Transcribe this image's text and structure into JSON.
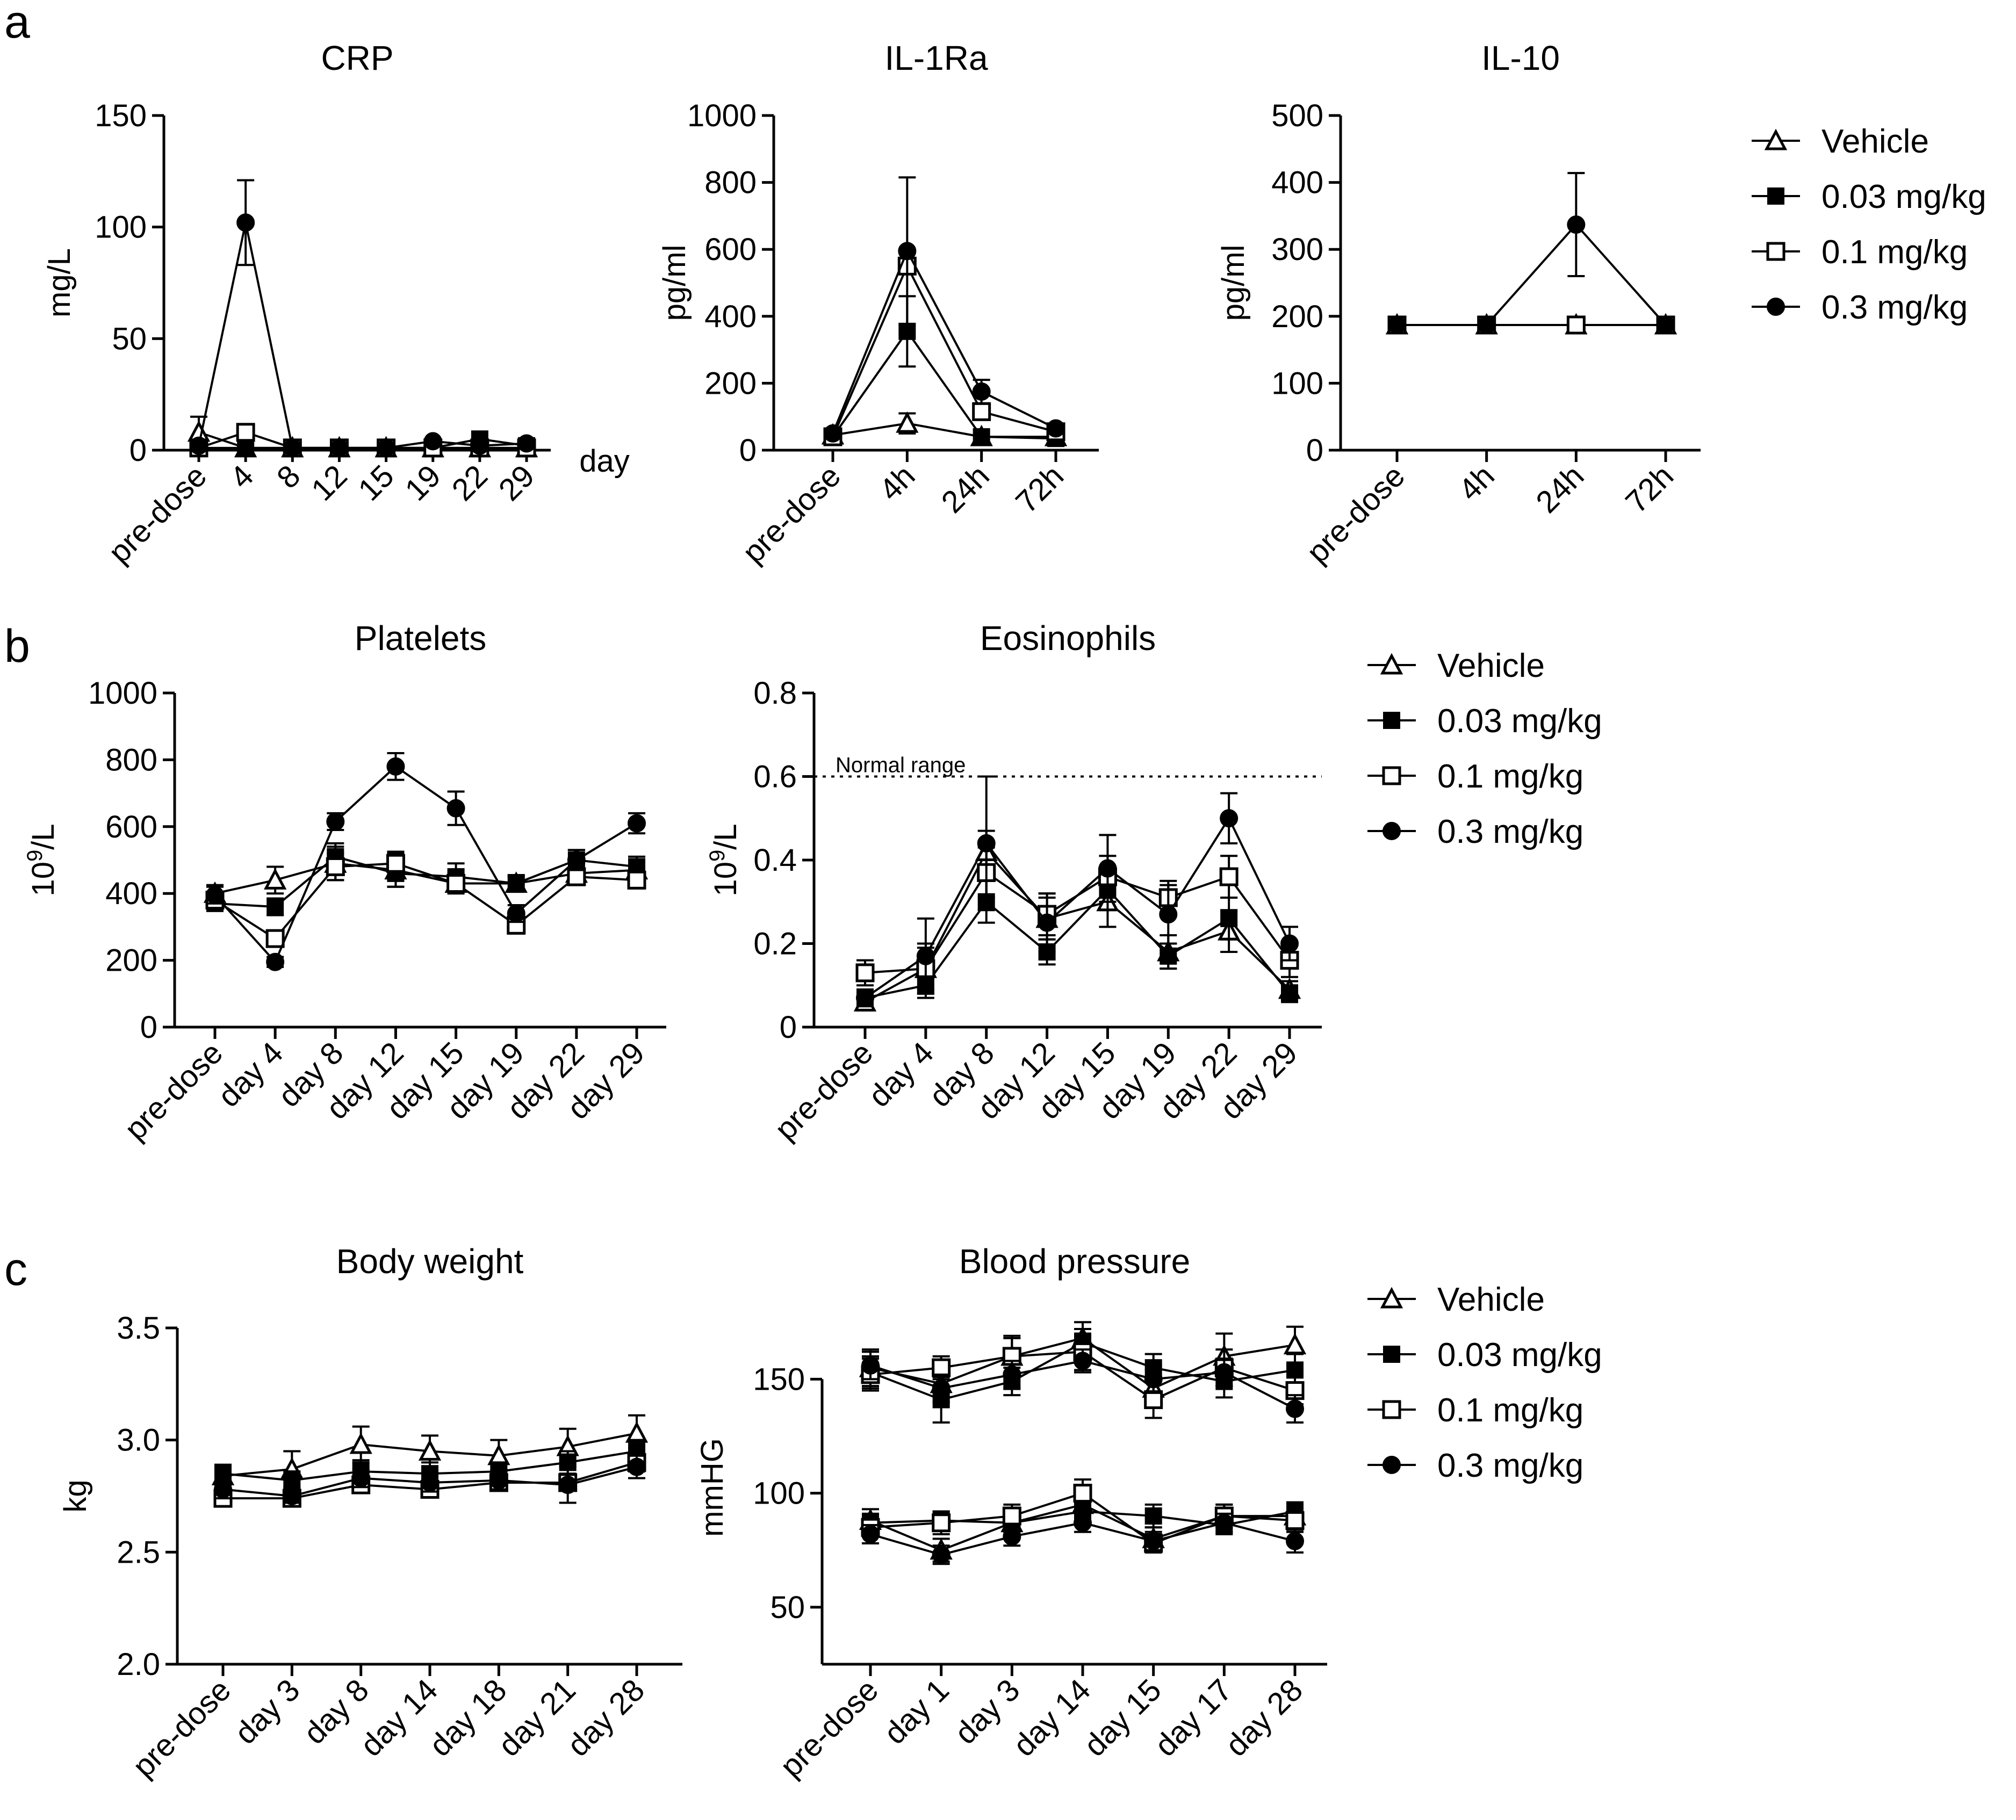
{
  "panel_labels": [
    "a",
    "b",
    "c"
  ],
  "legend": {
    "labels": [
      "Vehicle",
      "0.03 mg/kg",
      "0.1 mg/kg",
      "0.3 mg/kg"
    ],
    "markers": [
      "open-triangle",
      "filled-square",
      "open-square",
      "filled-circle"
    ]
  },
  "colors": {
    "ink": "#000000",
    "background": "#ffffff"
  },
  "chart_data": [
    {
      "id": "crp",
      "type": "line",
      "title": "CRP",
      "ylabel": "mg/L",
      "xlabel": "day",
      "categories": [
        "pre-dose",
        "4",
        "8",
        "12",
        "15",
        "19",
        "22",
        "29"
      ],
      "ylim": [
        0,
        150
      ],
      "yticks": [
        0,
        50,
        100,
        150
      ],
      "series": [
        {
          "name": "Vehicle",
          "values": [
            8,
            1,
            1,
            1,
            1,
            1,
            1,
            1
          ],
          "err": [
            7,
            0,
            0,
            0,
            0,
            0,
            0,
            0
          ]
        },
        {
          "name": "0.03 mg/kg",
          "values": [
            1,
            1,
            1,
            1,
            1,
            1,
            5,
            2
          ],
          "err": [
            0,
            0,
            0,
            0,
            0,
            0,
            0,
            0
          ]
        },
        {
          "name": "0.1 mg/kg",
          "values": [
            1,
            8,
            1,
            1,
            1,
            1,
            1,
            1
          ],
          "err": [
            0,
            0,
            0,
            0,
            0,
            0,
            0,
            0
          ]
        },
        {
          "name": "0.3 mg/kg",
          "values": [
            2,
            102,
            1,
            1,
            1,
            4,
            2,
            3
          ],
          "err": [
            0,
            19,
            0,
            0,
            0,
            0,
            0,
            0
          ]
        }
      ]
    },
    {
      "id": "il1ra",
      "type": "line",
      "title": "IL-1Ra",
      "ylabel": "pg/ml",
      "xlabel": "",
      "categories": [
        "pre-dose",
        "4h",
        "24h",
        "72h"
      ],
      "ylim": [
        0,
        1000
      ],
      "yticks": [
        0,
        200,
        400,
        600,
        800,
        1000
      ],
      "series": [
        {
          "name": "Vehicle",
          "values": [
            45,
            80,
            40,
            40
          ],
          "err": [
            0,
            30,
            0,
            0
          ]
        },
        {
          "name": "0.03 mg/kg",
          "values": [
            40,
            355,
            40,
            35
          ],
          "err": [
            0,
            105,
            0,
            0
          ]
        },
        {
          "name": "0.1 mg/kg",
          "values": [
            40,
            550,
            115,
            55
          ],
          "err": [
            0,
            0,
            20,
            0
          ]
        },
        {
          "name": "0.3 mg/kg",
          "values": [
            50,
            595,
            175,
            65
          ],
          "err": [
            0,
            220,
            35,
            0
          ]
        }
      ]
    },
    {
      "id": "il10",
      "type": "line",
      "title": "IL-10",
      "ylabel": "pg/ml",
      "xlabel": "",
      "categories": [
        "pre-dose",
        "4h",
        "24h",
        "72h"
      ],
      "ylim": [
        0,
        500
      ],
      "yticks": [
        0,
        100,
        200,
        300,
        400,
        500
      ],
      "series": [
        {
          "name": "Vehicle",
          "values": [
            187,
            187,
            187,
            187
          ],
          "err": [
            0,
            0,
            0,
            0
          ]
        },
        {
          "name": "0.03 mg/kg",
          "values": [
            187,
            187,
            187,
            187
          ],
          "err": [
            0,
            0,
            0,
            0
          ]
        },
        {
          "name": "0.1 mg/kg",
          "values": [
            187,
            187,
            187,
            187
          ],
          "err": [
            0,
            0,
            0,
            0
          ]
        },
        {
          "name": "0.3 mg/kg",
          "values": [
            187,
            187,
            337,
            187
          ],
          "err": [
            0,
            0,
            77,
            0
          ]
        }
      ]
    },
    {
      "id": "platelets",
      "type": "line",
      "title": "Platelets",
      "ylabel": "10^9/L",
      "xlabel": "",
      "categories": [
        "pre-dose",
        "day 4",
        "day 8",
        "day 12",
        "day 15",
        "day 19",
        "day 22",
        "day 29"
      ],
      "ylim": [
        0,
        1000
      ],
      "yticks": [
        0,
        200,
        400,
        600,
        800,
        1000
      ],
      "series": [
        {
          "name": "Vehicle",
          "values": [
            400,
            440,
            490,
            470,
            430,
            430,
            460,
            470
          ],
          "err": [
            25,
            40,
            50,
            50,
            30,
            20,
            30,
            30
          ]
        },
        {
          "name": "0.03 mg/kg",
          "values": [
            370,
            360,
            510,
            460,
            450,
            430,
            500,
            480
          ],
          "err": [
            20,
            25,
            40,
            40,
            40,
            25,
            30,
            30
          ]
        },
        {
          "name": "0.1 mg/kg",
          "values": [
            380,
            265,
            480,
            490,
            430,
            305,
            450,
            440
          ],
          "err": [
            20,
            20,
            40,
            35,
            25,
            25,
            25,
            25
          ]
        },
        {
          "name": "0.3 mg/kg",
          "values": [
            395,
            195,
            615,
            780,
            655,
            340,
            500,
            610
          ],
          "err": [
            25,
            15,
            25,
            40,
            50,
            25,
            30,
            30
          ]
        }
      ]
    },
    {
      "id": "eosinophils",
      "type": "line",
      "title": "Eosinophils",
      "ylabel": "10^9/L",
      "xlabel": "",
      "categories": [
        "pre-dose",
        "day 4",
        "day 8",
        "day 12",
        "day 15",
        "day 19",
        "day 22",
        "day 29"
      ],
      "ylim": [
        0,
        0.8
      ],
      "yticks": [
        0,
        0.2,
        0.4,
        0.6,
        0.8
      ],
      "reference_line": {
        "y": 0.6,
        "label": "Normal range"
      },
      "series": [
        {
          "name": "Vehicle",
          "values": [
            0.06,
            0.14,
            0.42,
            0.26,
            0.3,
            0.18,
            0.23,
            0.09
          ],
          "err": [
            0.02,
            0.06,
            0.05,
            0.05,
            0.06,
            0.04,
            0.05,
            0.02
          ]
        },
        {
          "name": "0.03 mg/kg",
          "values": [
            0.07,
            0.1,
            0.3,
            0.18,
            0.33,
            0.17,
            0.26,
            0.08
          ],
          "err": [
            0.02,
            0.03,
            0.05,
            0.03,
            0.05,
            0.03,
            0.05,
            0.02
          ]
        },
        {
          "name": "0.1 mg/kg",
          "values": [
            0.13,
            0.14,
            0.37,
            0.27,
            0.36,
            0.31,
            0.36,
            0.16
          ],
          "err": [
            0.03,
            0.05,
            0.06,
            0.05,
            0.05,
            0.04,
            0.05,
            0.04
          ]
        },
        {
          "name": "0.3 mg/kg",
          "values": [
            0.07,
            0.17,
            0.44,
            0.25,
            0.38,
            0.27,
            0.5,
            0.2
          ],
          "err": [
            0.02,
            0.09,
            0.16,
            0.07,
            0.08,
            0.07,
            0.06,
            0.04
          ]
        }
      ]
    },
    {
      "id": "bodyweight",
      "type": "line",
      "title": "Body weight",
      "ylabel": "kg",
      "xlabel": "",
      "categories": [
        "pre-dose",
        "day 3",
        "day 8",
        "day 14",
        "day 18",
        "day 21",
        "day 28"
      ],
      "ylim": [
        2.0,
        3.5
      ],
      "yticks": [
        2.0,
        2.5,
        3.0,
        3.5
      ],
      "series": [
        {
          "name": "Vehicle",
          "values": [
            2.84,
            2.87,
            2.98,
            2.95,
            2.93,
            2.97,
            3.03
          ],
          "err": [
            0.04,
            0.08,
            0.08,
            0.07,
            0.07,
            0.08,
            0.08
          ]
        },
        {
          "name": "0.03 mg/kg",
          "values": [
            2.85,
            2.82,
            2.86,
            2.85,
            2.86,
            2.9,
            2.95
          ],
          "err": [
            0.04,
            0.04,
            0.05,
            0.05,
            0.04,
            0.05,
            0.05
          ]
        },
        {
          "name": "0.1 mg/kg",
          "values": [
            2.74,
            2.74,
            2.8,
            2.78,
            2.81,
            2.81,
            2.9
          ],
          "err": [
            0.03,
            0.03,
            0.03,
            0.03,
            0.03,
            0.03,
            0.04
          ]
        },
        {
          "name": "0.3 mg/kg",
          "values": [
            2.78,
            2.75,
            2.83,
            2.81,
            2.82,
            2.8,
            2.88
          ],
          "err": [
            0.04,
            0.03,
            0.04,
            0.04,
            0.04,
            0.08,
            0.05
          ]
        }
      ]
    },
    {
      "id": "bloodpressure",
      "type": "line",
      "title": "Blood pressure",
      "ylabel": "mmHG",
      "xlabel": "",
      "categories": [
        "pre-dose",
        "day 1",
        "day 3",
        "day 14",
        "day 15",
        "day 17",
        "day 28"
      ],
      "ylim": [
        25,
        180
      ],
      "yticks": [
        50,
        100,
        150
      ],
      "series": [
        {
          "name": "Vehicle",
          "values": [
            155,
            148,
            160,
            168,
            146,
            160,
            165
          ],
          "err": [
            8,
            8,
            8,
            7,
            8,
            10,
            8
          ]
        },
        {
          "name": "0.03 mg/kg",
          "values": [
            153,
            141,
            149,
            166,
            155,
            149,
            154
          ],
          "err": [
            7,
            10,
            6,
            6,
            6,
            7,
            7
          ]
        },
        {
          "name": "0.1 mg/kg",
          "values": [
            152,
            155,
            160,
            162,
            141,
            155,
            145
          ],
          "err": [
            7,
            5,
            9,
            8,
            8,
            8,
            6
          ]
        },
        {
          "name": "0.3 mg/kg",
          "values": [
            156,
            146,
            152,
            158,
            150,
            153,
            137
          ],
          "err": [
            6,
            6,
            6,
            5,
            6,
            6,
            6
          ]
        },
        {
          "name": "Vehicle",
          "values": [
            88,
            75,
            87,
            95,
            80,
            90,
            90
          ],
          "err": [
            5,
            5,
            5,
            6,
            5,
            5,
            5
          ]
        },
        {
          "name": "0.03 mg/kg",
          "values": [
            87,
            88,
            87,
            92,
            90,
            86,
            92
          ],
          "err": [
            4,
            4,
            4,
            4,
            5,
            4,
            4
          ]
        },
        {
          "name": "0.1 mg/kg",
          "values": [
            85,
            87,
            90,
            100,
            78,
            90,
            88
          ],
          "err": [
            4,
            5,
            5,
            6,
            4,
            5,
            5
          ]
        },
        {
          "name": "0.3 mg/kg",
          "values": [
            82,
            73,
            81,
            87,
            79,
            87,
            79
          ],
          "err": [
            4,
            4,
            4,
            4,
            4,
            4,
            5
          ]
        }
      ]
    }
  ]
}
